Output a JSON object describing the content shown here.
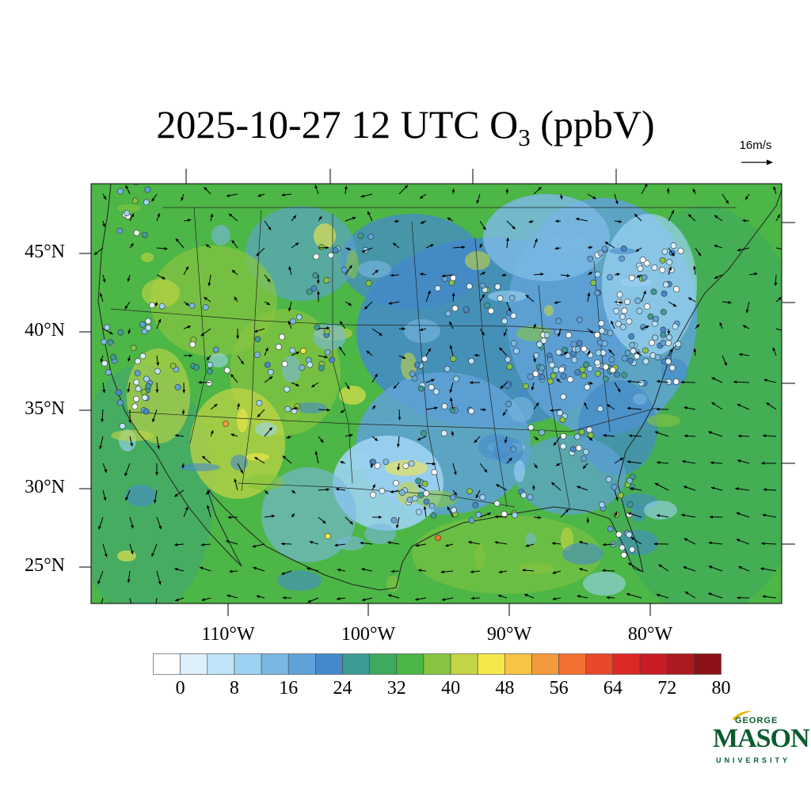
{
  "title": {
    "main": "2025-10-27 12 UTC O",
    "sub": "3",
    "units": " (ppbV)"
  },
  "reference_vector": {
    "label": "16m/s",
    "speed": 16
  },
  "latitude_labels": [
    "45°N",
    "40°N",
    "35°N",
    "30°N",
    "25°N"
  ],
  "longitude_labels": [
    "110°W",
    "100°W",
    "90°W",
    "80°W"
  ],
  "colorbar": {
    "tick_labels": [
      "0",
      "8",
      "16",
      "24",
      "32",
      "40",
      "48",
      "56",
      "64",
      "72",
      "80"
    ],
    "colors": [
      "#ffffff",
      "#ddf0fa",
      "#bfe4f7",
      "#9dd3f2",
      "#7ab8e3",
      "#5fa2d8",
      "#448acb",
      "#3d9c95",
      "#3fa95d",
      "#4cb646",
      "#87c540",
      "#c4d545",
      "#f6e84a",
      "#f8c445",
      "#f59a3c",
      "#f26f30",
      "#e9482b",
      "#dc2926",
      "#c81d25",
      "#ad1920",
      "#8c1218"
    ]
  },
  "logo": {
    "line1": "GEORGE",
    "line2": "MASON",
    "line3": "UNIVERSITY"
  }
}
